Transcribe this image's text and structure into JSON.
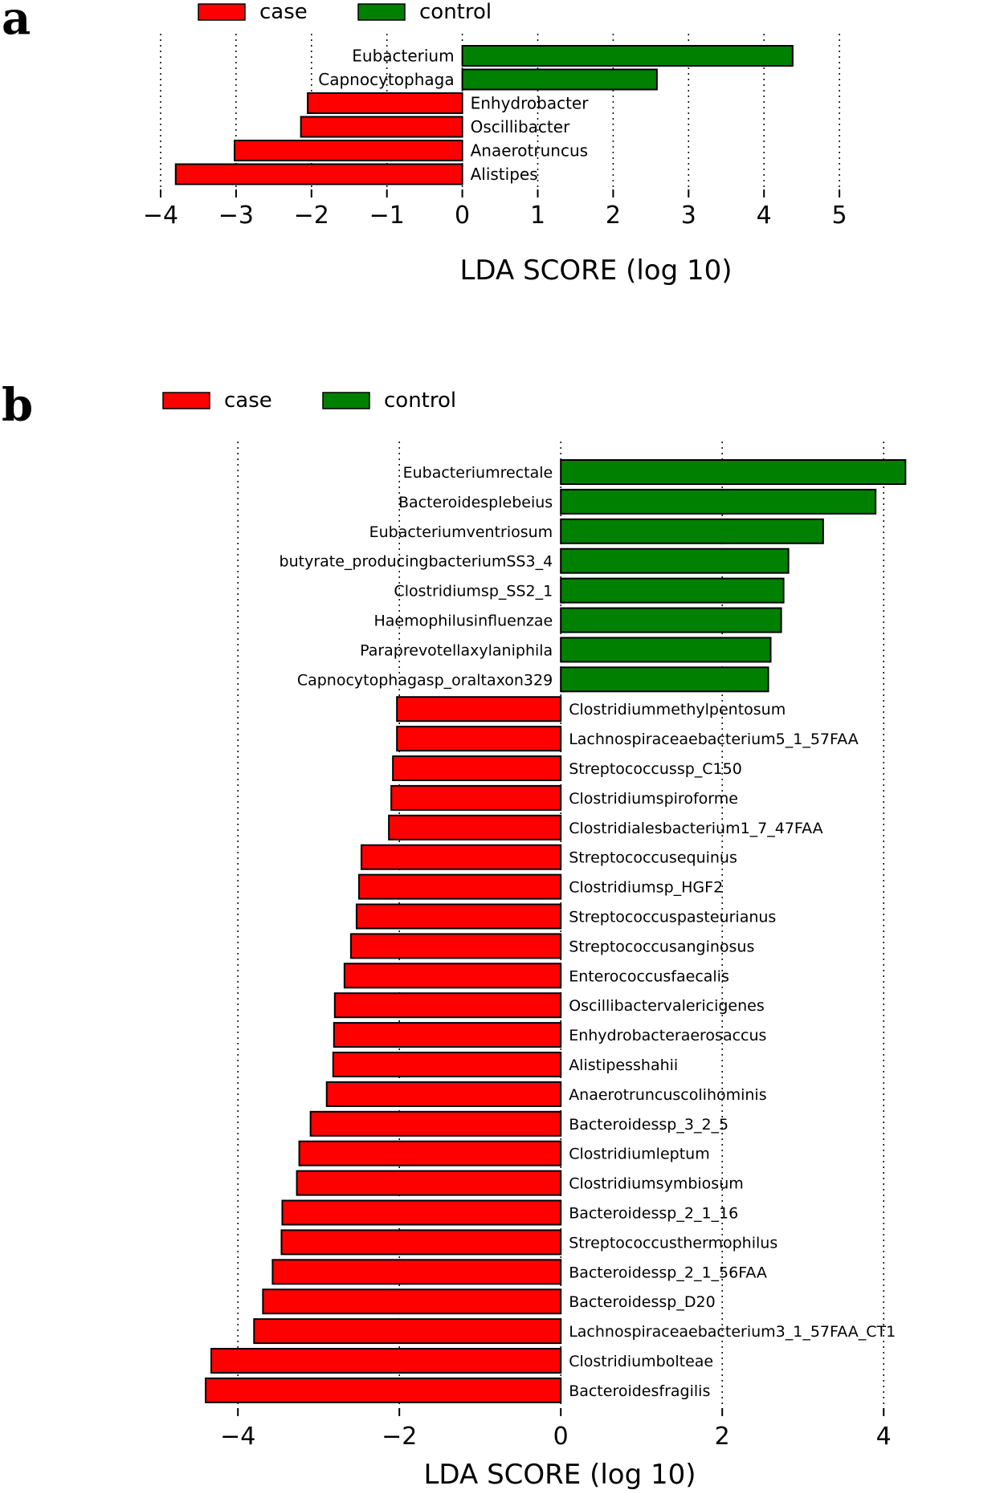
{
  "chart_data": [
    {
      "panel": "a",
      "type": "bar",
      "orientation": "horizontal",
      "legend": [
        {
          "name": "case",
          "color": "#ff0000"
        },
        {
          "name": "control",
          "color": "#008000"
        }
      ],
      "categories": [
        "Eubacterium",
        "Capnocytophaga",
        "Enhydrobacter",
        "Oscillibacter",
        "Anaerotruncus",
        "Alistipes"
      ],
      "values": [
        4.38,
        2.58,
        -2.05,
        -2.14,
        -3.02,
        -3.8
      ],
      "groups": [
        "control",
        "control",
        "case",
        "case",
        "case",
        "case"
      ],
      "xlabel": "LDA SCORE (log 10)",
      "xlim": [
        -4,
        5
      ],
      "xticks": [
        -4,
        -3,
        -2,
        -1,
        0,
        1,
        2,
        3,
        4,
        5
      ],
      "xtick_labels": [
        "−4",
        "−3",
        "−2",
        "−1",
        "0",
        "1",
        "2",
        "3",
        "4",
        "5"
      ],
      "grid": true
    },
    {
      "panel": "b",
      "type": "bar",
      "orientation": "horizontal",
      "legend": [
        {
          "name": "case",
          "color": "#ff0000"
        },
        {
          "name": "control",
          "color": "#008000"
        }
      ],
      "categories": [
        "Eubacteriumrectale",
        "Bacteroidesplebeius",
        "Eubacteriumventriosum",
        "butyrate_producingbacteriumSS3_4",
        "Clostridiumsp_SS2_1",
        "Haemophilusinfluenzae",
        "Paraprevotellaxylaniphila",
        "Capnocytophagasp_oraltaxon329",
        "Clostridiummethylpentosum",
        "Lachnospiraceaebacterium5_1_57FAA",
        "Streptococcussp_C150",
        "Clostridiumspiroforme",
        "Clostridialesbacterium1_7_47FAA",
        "Streptococcusequinus",
        "Clostridiumsp_HGF2",
        "Streptococcuspasteurianus",
        "Streptococcusanginosus",
        "Enterococcusfaecalis",
        "Oscillibactervalericigenes",
        "Enhydrobacteraerosaccus",
        "Alistipesshahii",
        "Anaerotruncuscolihominis",
        "Bacteroidessp_3_2_5",
        "Clostridiumleptum",
        "Clostridiumsymbiosum",
        "Bacteroidessp_2_1_16",
        "Streptococcusthermophilus",
        "Bacteroidessp_2_1_56FAA",
        "Bacteroidessp_D20",
        "Lachnospiraceaebacterium3_1_57FAA_CT1",
        "Clostridiumbolteae",
        "Bacteroidesfragilis"
      ],
      "values": [
        4.27,
        3.9,
        3.25,
        2.82,
        2.76,
        2.73,
        2.6,
        2.57,
        -2.03,
        -2.03,
        -2.08,
        -2.1,
        -2.13,
        -2.47,
        -2.5,
        -2.53,
        -2.6,
        -2.68,
        -2.8,
        -2.81,
        -2.82,
        -2.9,
        -3.1,
        -3.24,
        -3.27,
        -3.45,
        -3.46,
        -3.57,
        -3.69,
        -3.8,
        -4.33,
        -4.4
      ],
      "groups": [
        "control",
        "control",
        "control",
        "control",
        "control",
        "control",
        "control",
        "control",
        "case",
        "case",
        "case",
        "case",
        "case",
        "case",
        "case",
        "case",
        "case",
        "case",
        "case",
        "case",
        "case",
        "case",
        "case",
        "case",
        "case",
        "case",
        "case",
        "case",
        "case",
        "case",
        "case",
        "case"
      ],
      "xlabel": "LDA SCORE (log 10)",
      "xlim": [
        -4.4,
        4.3
      ],
      "xticks": [
        -4,
        -2,
        0,
        2,
        4
      ],
      "xtick_labels": [
        "−4",
        "−2",
        "0",
        "2",
        "4"
      ],
      "grid": true
    }
  ]
}
